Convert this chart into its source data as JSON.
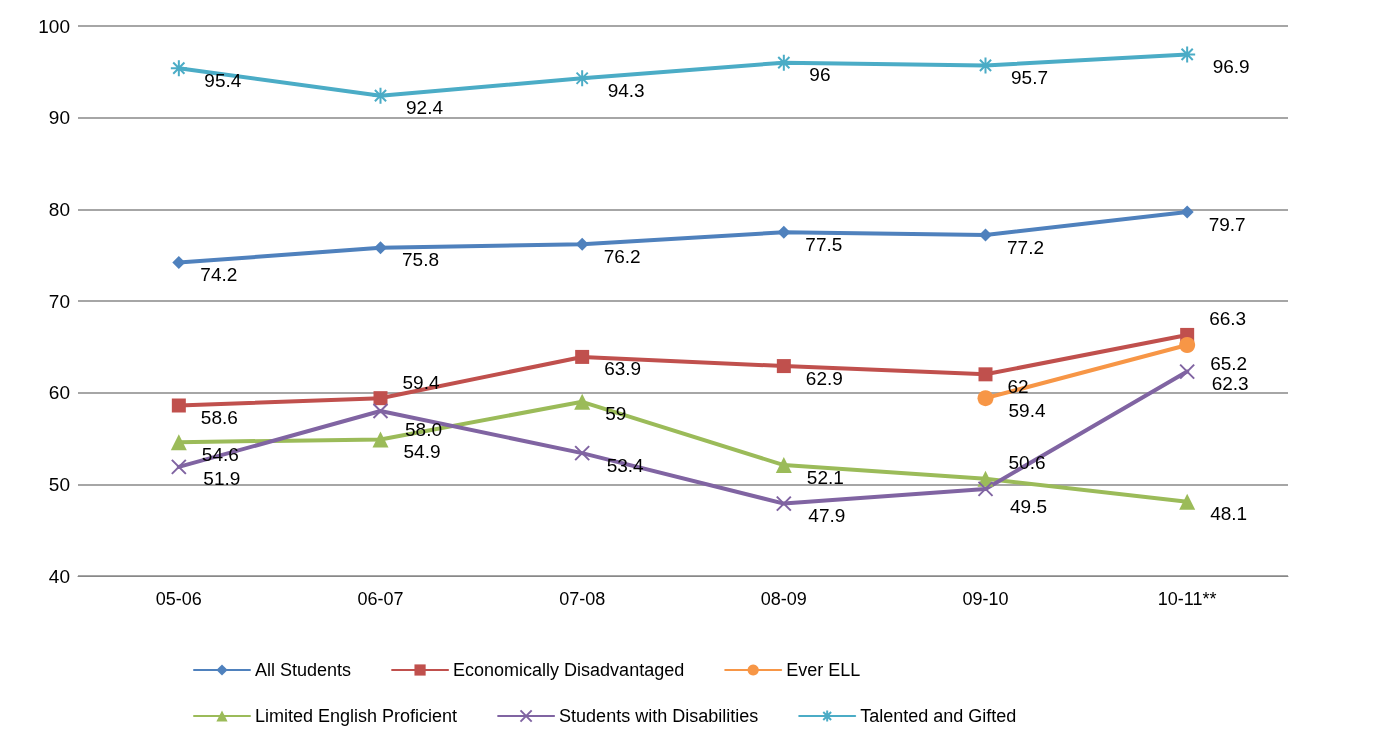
{
  "chart_data": {
    "type": "line",
    "categories": [
      "05-06",
      "06-07",
      "07-08",
      "08-09",
      "09-10",
      "10-11**"
    ],
    "series": [
      {
        "name": "All Students",
        "color": "#4f81bd",
        "marker": "diamond",
        "values": [
          74.2,
          75.8,
          76.2,
          77.5,
          77.2,
          79.7
        ],
        "value_labels": [
          "74.2",
          "75.8",
          "76.2",
          "77.5",
          "77.2",
          "79.7"
        ]
      },
      {
        "name": "Economically Disadvantaged",
        "color": "#c0504d",
        "marker": "square",
        "values": [
          58.6,
          59.4,
          63.9,
          62.9,
          62,
          66.3
        ],
        "value_labels": [
          "58.6",
          "59.4",
          "63.9",
          "62.9",
          "62",
          "66.3"
        ]
      },
      {
        "name": "Ever ELL",
        "color": "#f79646",
        "marker": "circle",
        "values": [
          null,
          null,
          null,
          null,
          59.4,
          65.2
        ],
        "value_labels": [
          null,
          null,
          null,
          null,
          "59.4",
          "65.2"
        ]
      },
      {
        "name": "Limited English Proficient",
        "color": "#9bbb59",
        "marker": "triangle",
        "values": [
          54.6,
          54.9,
          59,
          52.1,
          50.6,
          48.1
        ],
        "value_labels": [
          "54.6",
          "54.9",
          "59",
          "52.1",
          "50.6",
          "48.1"
        ]
      },
      {
        "name": "Students with Disabilities",
        "color": "#8064a2",
        "marker": "cross",
        "values": [
          51.9,
          58.0,
          53.4,
          47.9,
          49.5,
          62.3
        ],
        "value_labels": [
          "51.9",
          "58.0",
          "53.4",
          "47.9",
          "49.5",
          "62.3"
        ]
      },
      {
        "name": "Talented and Gifted",
        "color": "#4bacc6",
        "marker": "star",
        "values": [
          95.4,
          92.4,
          94.3,
          96,
          95.7,
          96.9
        ],
        "value_labels": [
          "95.4",
          "92.4",
          "94.3",
          "96",
          "95.7",
          "96.9"
        ]
      }
    ],
    "ylim": [
      40,
      100
    ],
    "yticks": [
      40,
      50,
      60,
      70,
      80,
      90,
      100
    ],
    "grid": "y",
    "legend": "bottom",
    "line_style": "solid"
  }
}
